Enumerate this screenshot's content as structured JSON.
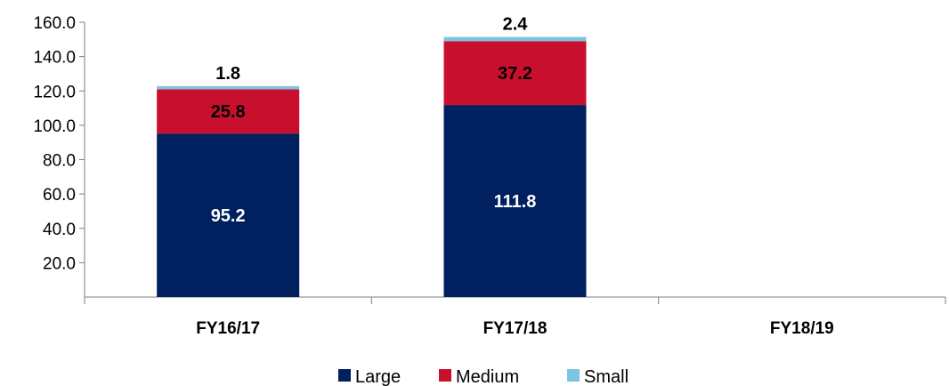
{
  "chart_data": {
    "type": "bar",
    "stacked": true,
    "categories": [
      "FY16/17",
      "FY17/18",
      "FY18/19"
    ],
    "series": [
      {
        "name": "Large",
        "values": [
          95.2,
          111.8,
          null
        ],
        "color": "#002060",
        "label_color": "#ffffff"
      },
      {
        "name": "Medium",
        "values": [
          25.8,
          37.2,
          null
        ],
        "color": "#C8102E",
        "label_color": "#000000"
      },
      {
        "name": "Small",
        "values": [
          1.8,
          2.4,
          null
        ],
        "color": "#7CC4E4",
        "label_color": "#000000"
      }
    ],
    "ylim": [
      0,
      160
    ],
    "yticks": [
      "20.0",
      "40.0",
      "60.0",
      "80.0",
      "100.0",
      "120.0",
      "140.0",
      "160.0"
    ],
    "grid": false,
    "legend_position": "bottom-center",
    "title": "",
    "xlabel": "",
    "ylabel": ""
  }
}
